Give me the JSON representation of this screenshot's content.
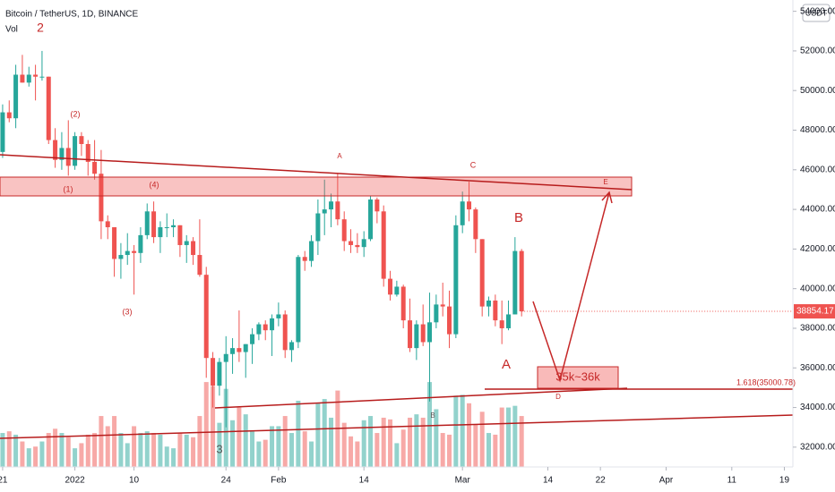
{
  "chart_data": {
    "type": "candlestick",
    "title": "Bitcoin / TetherUS, 1D, BINANCE",
    "volume_label": "Vol",
    "currency": "USDT",
    "colors": {
      "up": "#26a69a",
      "down": "#ef5350"
    },
    "open": [
      46900,
      48900,
      48600,
      50800,
      50400,
      50800,
      50700,
      50700,
      47500,
      46500,
      47100,
      46200,
      47700,
      47300,
      46400,
      45800,
      43400,
      43100,
      41500,
      41700,
      41900,
      41800,
      42700,
      43900,
      42600,
      43100,
      43100,
      43200,
      42200,
      42400,
      41700,
      40700,
      36500,
      35100,
      36300,
      36700,
      37000,
      36800,
      37200,
      37700,
      38200,
      37900,
      38500,
      38700,
      36900,
      37300,
      41600,
      41400,
      42400,
      43800,
      44000,
      44400,
      43500,
      42400,
      42200,
      42100,
      42500,
      44500,
      43900,
      40500,
      39700,
      40100,
      38400,
      37000,
      38200,
      37300,
      38300,
      39200,
      39100,
      37700,
      43200,
      44400,
      44000,
      42500,
      39100,
      39400,
      38400,
      38000,
      38700,
      41900
    ],
    "high": [
      49300,
      49500,
      51300,
      51800,
      51200,
      51300,
      52000,
      50700,
      48100,
      47900,
      48500,
      47900,
      47900,
      47500,
      47500,
      47000,
      43700,
      43100,
      42300,
      42800,
      42200,
      43100,
      44300,
      44400,
      43400,
      43800,
      43500,
      43200,
      42700,
      42600,
      43500,
      41100,
      36800,
      36500,
      37600,
      37500,
      38900,
      37200,
      38000,
      38300,
      38400,
      38700,
      39300,
      38900,
      37400,
      41700,
      41900,
      42700,
      44500,
      45500,
      44800,
      45800,
      43900,
      43000,
      42800,
      42900,
      44700,
      44600,
      44200,
      40900,
      40400,
      40200,
      39500,
      38400,
      39200,
      39800,
      39700,
      40300,
      39900,
      43700,
      44900,
      45400,
      44100,
      42500,
      39600,
      39700,
      39400,
      39400,
      42600,
      42000
    ],
    "low": [
      46600,
      48400,
      48100,
      50400,
      50200,
      49500,
      50500,
      47300,
      46100,
      46000,
      45700,
      46000,
      46700,
      45700,
      45500,
      42500,
      42500,
      40600,
      40500,
      41200,
      39700,
      41300,
      42500,
      42300,
      41800,
      42600,
      42600,
      41600,
      41300,
      41200,
      40600,
      35500,
      34000,
      34600,
      33000,
      35700,
      36300,
      35500,
      36200,
      37400,
      37400,
      36600,
      38100,
      36500,
      36300,
      37000,
      40900,
      41100,
      41700,
      42700,
      43100,
      43200,
      41900,
      41800,
      41800,
      41600,
      42400,
      43300,
      40100,
      39400,
      39600,
      38000,
      36800,
      36400,
      37100,
      34300,
      38000,
      38600,
      37000,
      37500,
      42800,
      43400,
      41800,
      38600,
      38600,
      38100,
      37200,
      37900,
      38700,
      38600
    ],
    "close": [
      48900,
      48600,
      50800,
      50400,
      50800,
      50700,
      50700,
      47500,
      46500,
      47100,
      46200,
      47700,
      47300,
      46400,
      45800,
      43400,
      43100,
      41500,
      41700,
      41900,
      41800,
      42700,
      43900,
      42600,
      43100,
      43100,
      43200,
      42200,
      42400,
      41700,
      40700,
      36500,
      35100,
      36300,
      36700,
      37000,
      36800,
      37200,
      37700,
      38200,
      37900,
      38500,
      38700,
      36900,
      37300,
      41600,
      41400,
      42400,
      43800,
      44000,
      44400,
      43500,
      42400,
      42200,
      42100,
      42500,
      44500,
      43900,
      40500,
      39700,
      40100,
      38400,
      37000,
      38200,
      37300,
      38300,
      39200,
      39100,
      37700,
      43200,
      44400,
      44000,
      42500,
      39100,
      39400,
      38400,
      38000,
      38700,
      41900,
      38854.17
    ],
    "volume": [
      40000,
      42000,
      38000,
      30000,
      22000,
      24000,
      30000,
      40000,
      45000,
      40000,
      35000,
      22000,
      28000,
      38000,
      40000,
      60000,
      48000,
      60000,
      40000,
      28000,
      48000,
      40000,
      42000,
      40000,
      38000,
      24000,
      22000,
      40000,
      38000,
      35000,
      60000,
      100000,
      95000,
      52000,
      92000,
      55000,
      70000,
      62000,
      42000,
      30000,
      32000,
      48000,
      48000,
      60000,
      40000,
      78000,
      42000,
      30000,
      75000,
      80000,
      58000,
      90000,
      52000,
      36000,
      30000,
      55000,
      60000,
      40000,
      58000,
      56000,
      28000,
      44000,
      58000,
      62000,
      58000,
      100000,
      68000,
      40000,
      38000,
      84000,
      85000,
      75000,
      50000,
      65000,
      40000,
      38000,
      70000,
      70000,
      72000,
      60000
    ],
    "volume_lim": [
      0,
      550000
    ],
    "xlim": [
      -0.4,
      120.3
    ],
    "xticks": [
      {
        "value": 0,
        "label": "21"
      },
      {
        "value": 11,
        "label": "2022"
      },
      {
        "value": 20,
        "label": "10"
      },
      {
        "value": 34,
        "label": "24"
      },
      {
        "value": 42,
        "label": "Feb"
      },
      {
        "value": 55,
        "label": "14"
      },
      {
        "value": 70,
        "label": "Mar"
      },
      {
        "value": 83,
        "label": "14"
      },
      {
        "value": 91,
        "label": "22"
      },
      {
        "value": 101,
        "label": "Apr"
      },
      {
        "value": 111,
        "label": "11"
      },
      {
        "value": 119,
        "label": "19"
      }
    ],
    "ylim": [
      31000,
      54570
    ],
    "yticks": [
      {
        "value": 32000,
        "label": "32000.00"
      },
      {
        "value": 34000,
        "label": "34000.00"
      },
      {
        "value": 36000,
        "label": "36000.00"
      },
      {
        "value": 38000,
        "label": "38000.00"
      },
      {
        "value": 40000,
        "label": "40000.00"
      },
      {
        "value": 42000,
        "label": "42000.00"
      },
      {
        "value": 44000,
        "label": "44000.00"
      },
      {
        "value": 46000,
        "label": "46000.00"
      },
      {
        "value": 48000,
        "label": "48000.00"
      },
      {
        "value": 50000,
        "label": "50000.00"
      },
      {
        "value": 52000,
        "label": "52000.00"
      },
      {
        "value": 54000,
        "label": "54000.00"
      }
    ],
    "grid": false,
    "annotations": [
      "2",
      "(2)",
      "(1)",
      "(4)",
      "(3)",
      "A",
      "C",
      "B",
      "A",
      "E",
      "D",
      "3",
      "B",
      "35k~36k",
      "1.618(35000.78)"
    ]
  }
}
